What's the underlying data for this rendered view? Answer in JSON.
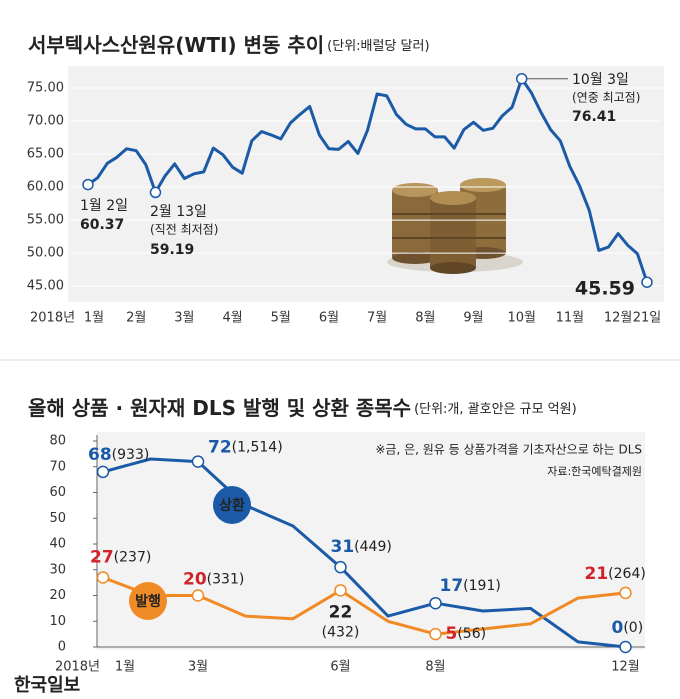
{
  "chart_data": [
    {
      "type": "line",
      "title": "서부텍사스산원유(WTI) 변동 추이",
      "subtitle": "(단위:배럴당 달러)",
      "xlabel": "2018년",
      "categories": [
        "1월",
        null,
        null,
        null,
        null,
        "2월",
        null,
        null,
        null,
        null,
        "3월",
        null,
        null,
        null,
        null,
        "4월",
        null,
        null,
        null,
        null,
        "5월",
        null,
        null,
        null,
        null,
        "6월",
        null,
        null,
        null,
        null,
        "7월",
        null,
        null,
        null,
        null,
        "8월",
        null,
        null,
        null,
        null,
        "9월",
        null,
        null,
        null,
        null,
        "10월",
        null,
        null,
        null,
        null,
        "11월",
        null,
        null,
        null,
        null,
        "12월",
        null,
        null,
        "21일"
      ],
      "values": [
        60.37,
        61.4,
        63.6,
        64.5,
        65.8,
        65.5,
        63.4,
        59.19,
        61.7,
        63.5,
        61.3,
        62.0,
        62.3,
        65.9,
        64.9,
        63.0,
        62.1,
        67.0,
        68.4,
        67.9,
        67.3,
        69.7,
        71.0,
        72.2,
        67.9,
        65.8,
        65.7,
        66.9,
        65.1,
        68.6,
        74.1,
        73.8,
        71.0,
        69.5,
        68.8,
        68.8,
        67.6,
        67.6,
        65.9,
        68.7,
        69.8,
        68.6,
        68.9,
        70.8,
        72.1,
        76.41,
        74.3,
        71.3,
        68.7,
        67.0,
        63.1,
        60.2,
        56.5,
        50.4,
        50.9,
        52.95,
        51.2,
        49.9,
        45.59
      ],
      "color": "#1b5aa6",
      "ylim": [
        43.5,
        77.5
      ],
      "yticks": [
        {
          "value": 45,
          "label": "45.00"
        },
        {
          "value": 50,
          "label": "50.00"
        },
        {
          "value": 55,
          "label": "55.00"
        },
        {
          "value": 60,
          "label": "60.00"
        },
        {
          "value": 65,
          "label": "65.00"
        },
        {
          "value": 70,
          "label": "70.00"
        },
        {
          "value": 75,
          "label": "75.00"
        }
      ],
      "grid": true,
      "annotations": [
        "1월 2일",
        "2월 13일",
        "(직전 최저점)",
        "10월 3일",
        "(연중 최고점)"
      ]
    },
    {
      "type": "line",
      "title": "올해 상품 · 원자재 DLS 발행 및 상환 종목수",
      "subtitle": "(단위:개, 괄호안은 규모 억원)",
      "notes": [
        "※금, 은, 원유 등 상품가격을 기초자산으로 하는 DLS",
        "자료:한국예탁결제원"
      ],
      "xlabel": "2018년",
      "categories": [
        "1월",
        null,
        "3월",
        null,
        null,
        "6월",
        null,
        "8월",
        null,
        null,
        null,
        "12월"
      ],
      "series": [
        {
          "name": "상환",
          "color": "#1b5aa6",
          "label_color": "#1b5aa6",
          "values": [
            68,
            73,
            72,
            55,
            47,
            31,
            12,
            17,
            14,
            15,
            2,
            0
          ],
          "amount_labels": [
            "(933)",
            null,
            "(1,514)",
            null,
            null,
            "(449)",
            null,
            "(191)",
            null,
            null,
            null,
            "(0)"
          ]
        },
        {
          "name": "발행",
          "color": "#f08a24",
          "label_color": "#d0232a",
          "values": [
            27,
            20,
            20,
            12,
            11,
            22,
            10,
            5,
            7,
            9,
            19,
            21
          ],
          "amount_labels": [
            "(237)",
            null,
            "(331)",
            null,
            null,
            "(432)",
            null,
            "(56)",
            null,
            null,
            null,
            "(264)"
          ]
        }
      ],
      "ylim": [
        0,
        80
      ],
      "yticks": [
        0,
        10,
        20,
        30,
        40,
        50,
        60,
        70,
        80
      ],
      "grid": false
    },
    "한국일보"
  ]
}
